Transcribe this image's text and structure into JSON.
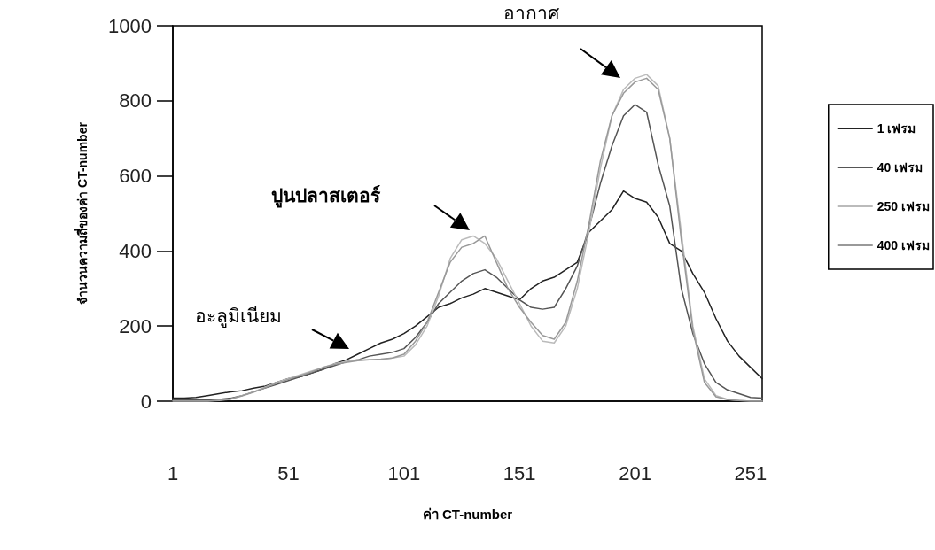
{
  "chart_data": {
    "type": "line",
    "xlabel": "ค่า CT-number",
    "ylabel": "จำนวนความถี่ของค่า CT-number",
    "x": [
      1,
      6,
      11,
      16,
      21,
      26,
      31,
      36,
      41,
      46,
      51,
      56,
      61,
      66,
      71,
      76,
      81,
      86,
      91,
      96,
      101,
      106,
      111,
      116,
      121,
      126,
      131,
      136,
      141,
      146,
      151,
      156,
      161,
      166,
      171,
      176,
      181,
      186,
      191,
      196,
      201,
      206,
      211,
      216,
      221,
      226,
      231,
      236,
      241,
      246,
      251,
      256
    ],
    "series": [
      {
        "name": "1 เฟรม",
        "color": "#222222",
        "values": [
          8,
          8,
          10,
          15,
          20,
          25,
          28,
          35,
          40,
          50,
          60,
          65,
          75,
          85,
          100,
          110,
          125,
          140,
          155,
          165,
          180,
          200,
          225,
          250,
          260,
          275,
          285,
          300,
          290,
          280,
          270,
          300,
          320,
          330,
          350,
          370,
          450,
          480,
          510,
          560,
          540,
          530,
          490,
          420,
          400,
          340,
          290,
          220,
          160,
          120,
          90,
          60
        ]
      },
      {
        "name": "40 เฟรม",
        "color": "#555555",
        "values": [
          3,
          3,
          3,
          3,
          5,
          8,
          15,
          25,
          35,
          45,
          55,
          65,
          75,
          85,
          95,
          105,
          110,
          120,
          125,
          130,
          140,
          170,
          210,
          260,
          290,
          320,
          340,
          350,
          330,
          300,
          270,
          250,
          245,
          250,
          300,
          360,
          460,
          580,
          680,
          760,
          790,
          770,
          630,
          520,
          300,
          180,
          100,
          50,
          30,
          20,
          10,
          8
        ]
      },
      {
        "name": "250 เฟรม",
        "color": "#bbbbbb",
        "values": [
          0,
          0,
          0,
          0,
          2,
          5,
          15,
          25,
          38,
          50,
          60,
          70,
          80,
          90,
          100,
          105,
          110,
          110,
          110,
          115,
          120,
          150,
          200,
          280,
          380,
          430,
          440,
          420,
          380,
          320,
          260,
          200,
          160,
          155,
          200,
          300,
          450,
          620,
          760,
          830,
          860,
          870,
          840,
          700,
          450,
          200,
          60,
          15,
          5,
          2,
          0,
          0
        ]
      },
      {
        "name": "400 เฟรม",
        "color": "#999999",
        "values": [
          0,
          0,
          0,
          0,
          3,
          6,
          14,
          24,
          36,
          48,
          58,
          68,
          78,
          90,
          98,
          103,
          108,
          110,
          112,
          115,
          125,
          160,
          210,
          290,
          370,
          410,
          420,
          440,
          370,
          300,
          250,
          210,
          175,
          165,
          210,
          320,
          470,
          640,
          760,
          820,
          850,
          860,
          830,
          700,
          430,
          190,
          50,
          12,
          4,
          2,
          0,
          0
        ]
      }
    ],
    "xlim": [
      1,
      256
    ],
    "xticks": [
      1,
      51,
      101,
      151,
      201,
      251
    ],
    "ylim": [
      0,
      1000
    ],
    "yticks": [
      0,
      200,
      400,
      600,
      800,
      1000
    ],
    "annotations": [
      "อากาศ",
      "ปูนปลาสเตอร์",
      "อะลูมิเนียม"
    ],
    "grid": false,
    "legend": "right",
    "marker": "none",
    "line_style": "solid"
  }
}
